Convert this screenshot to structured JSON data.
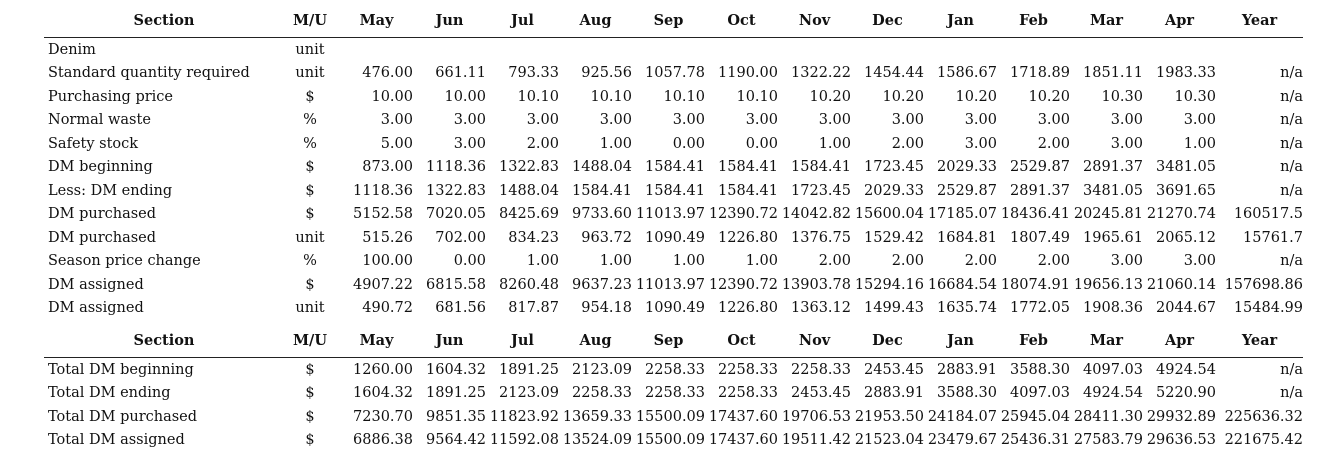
{
  "table1": {
    "headers": [
      "Section",
      "M/U",
      "May",
      "Jun",
      "Jul",
      "Aug",
      "Sep",
      "Oct",
      "Nov",
      "Dec",
      "Jan",
      "Feb",
      "Mar",
      "Apr",
      "Year"
    ],
    "rows": [
      [
        "Denim",
        "unit",
        "",
        "",
        "",
        "",
        "",
        "",
        "",
        "",
        "",
        "",
        "",
        "",
        ""
      ],
      [
        "Standard quantity required",
        "unit",
        "476.00",
        "661.11",
        "793.33",
        "925.56",
        "1057.78",
        "1190.00",
        "1322.22",
        "1454.44",
        "1586.67",
        "1718.89",
        "1851.11",
        "1983.33",
        "n/a"
      ],
      [
        "Purchasing price",
        "$",
        "10.00",
        "10.00",
        "10.10",
        "10.10",
        "10.10",
        "10.10",
        "10.20",
        "10.20",
        "10.20",
        "10.20",
        "10.30",
        "10.30",
        "n/a"
      ],
      [
        "Normal waste",
        "%",
        "3.00",
        "3.00",
        "3.00",
        "3.00",
        "3.00",
        "3.00",
        "3.00",
        "3.00",
        "3.00",
        "3.00",
        "3.00",
        "3.00",
        "n/a"
      ],
      [
        "Safety stock",
        "%",
        "5.00",
        "3.00",
        "2.00",
        "1.00",
        "0.00",
        "0.00",
        "1.00",
        "2.00",
        "3.00",
        "2.00",
        "3.00",
        "1.00",
        "n/a"
      ],
      [
        "DM beginning",
        "$",
        "873.00",
        "1118.36",
        "1322.83",
        "1488.04",
        "1584.41",
        "1584.41",
        "1584.41",
        "1723.45",
        "2029.33",
        "2529.87",
        "2891.37",
        "3481.05",
        "n/a"
      ],
      [
        "Less: DM ending",
        "$",
        "1118.36",
        "1322.83",
        "1488.04",
        "1584.41",
        "1584.41",
        "1584.41",
        "1723.45",
        "2029.33",
        "2529.87",
        "2891.37",
        "3481.05",
        "3691.65",
        "n/a"
      ],
      [
        "DM purchased",
        "$",
        "5152.58",
        "7020.05",
        "8425.69",
        "9733.60",
        "11013.97",
        "12390.72",
        "14042.82",
        "15600.04",
        "17185.07",
        "18436.41",
        "20245.81",
        "21270.74",
        "160517.5"
      ],
      [
        "DM purchased",
        "unit",
        "515.26",
        "702.00",
        "834.23",
        "963.72",
        "1090.49",
        "1226.80",
        "1376.75",
        "1529.42",
        "1684.81",
        "1807.49",
        "1965.61",
        "2065.12",
        "15761.7"
      ],
      [
        "Season price change",
        "%",
        "100.00",
        "0.00",
        "1.00",
        "1.00",
        "1.00",
        "1.00",
        "2.00",
        "2.00",
        "2.00",
        "2.00",
        "3.00",
        "3.00",
        "n/a"
      ],
      [
        "DM assigned",
        "$",
        "4907.22",
        "6815.58",
        "8260.48",
        "9637.23",
        "11013.97",
        "12390.72",
        "13903.78",
        "15294.16",
        "16684.54",
        "18074.91",
        "19656.13",
        "21060.14",
        "157698.86"
      ],
      [
        "DM assigned",
        "unit",
        "490.72",
        "681.56",
        "817.87",
        "954.18",
        "1090.49",
        "1226.80",
        "1363.12",
        "1499.43",
        "1635.74",
        "1772.05",
        "1908.36",
        "2044.67",
        "15484.99"
      ]
    ]
  },
  "table2": {
    "headers": [
      "Section",
      "M/U",
      "May",
      "Jun",
      "Jul",
      "Aug",
      "Sep",
      "Oct",
      "Nov",
      "Dec",
      "Jan",
      "Feb",
      "Mar",
      "Apr",
      "Year"
    ],
    "rows": [
      [
        "Total DM beginning",
        "$",
        "1260.00",
        "1604.32",
        "1891.25",
        "2123.09",
        "2258.33",
        "2258.33",
        "2258.33",
        "2453.45",
        "2883.91",
        "3588.30",
        "4097.03",
        "4924.54",
        "n/a"
      ],
      [
        "Total DM ending",
        "$",
        "1604.32",
        "1891.25",
        "2123.09",
        "2258.33",
        "2258.33",
        "2258.33",
        "2453.45",
        "2883.91",
        "3588.30",
        "4097.03",
        "4924.54",
        "5220.90",
        "n/a"
      ],
      [
        "Total DM purchased",
        "$",
        "7230.70",
        "9851.35",
        "11823.92",
        "13659.33",
        "15500.09",
        "17437.60",
        "19706.53",
        "21953.50",
        "24184.07",
        "25945.04",
        "28411.30",
        "29932.89",
        "225636.32"
      ],
      [
        "Total DM assigned",
        "$",
        "6886.38",
        "9564.42",
        "11592.08",
        "13524.09",
        "15500.09",
        "17437.60",
        "19511.42",
        "21523.04",
        "23479.67",
        "25436.31",
        "27583.79",
        "29636.53",
        "221675.42"
      ]
    ]
  }
}
